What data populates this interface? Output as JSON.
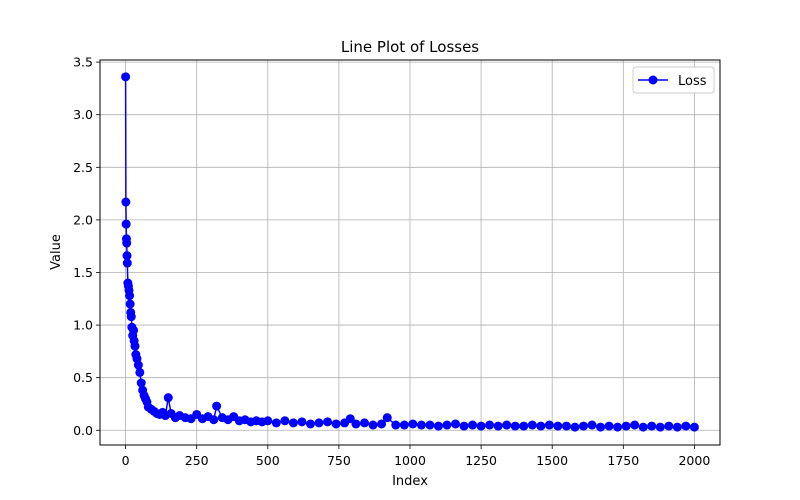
{
  "chart_data": {
    "type": "line",
    "title": "Line Plot of Losses",
    "xlabel": "Index",
    "ylabel": "Value",
    "xlim": [
      -90,
      2090
    ],
    "ylim": [
      -0.14,
      3.52
    ],
    "xticks": [
      0,
      250,
      500,
      750,
      1000,
      1250,
      1500,
      1750,
      2000
    ],
    "xtick_labels": [
      "0",
      "250",
      "500",
      "750",
      "1000",
      "1250",
      "1500",
      "1750",
      "2000"
    ],
    "yticks": [
      0.0,
      0.5,
      1.0,
      1.5,
      2.0,
      2.5,
      3.0,
      3.5
    ],
    "ytick_labels": [
      "0.0",
      "0.5",
      "1.0",
      "1.5",
      "2.0",
      "2.5",
      "3.0",
      "3.5"
    ],
    "grid": true,
    "legend_position": "top-right",
    "series": [
      {
        "name": "Loss",
        "color": "#0000ff",
        "marker": "circle",
        "x": [
          0,
          1,
          2,
          3,
          4,
          5,
          6,
          8,
          10,
          12,
          14,
          16,
          18,
          20,
          22,
          25,
          28,
          30,
          33,
          36,
          40,
          45,
          50,
          55,
          60,
          65,
          70,
          75,
          80,
          90,
          100,
          110,
          120,
          130,
          140,
          150,
          160,
          175,
          190,
          210,
          230,
          250,
          270,
          290,
          310,
          320,
          340,
          360,
          380,
          400,
          420,
          440,
          460,
          480,
          500,
          530,
          560,
          590,
          620,
          650,
          680,
          710,
          740,
          770,
          790,
          810,
          840,
          870,
          900,
          920,
          950,
          980,
          1010,
          1040,
          1070,
          1100,
          1130,
          1160,
          1190,
          1220,
          1250,
          1280,
          1310,
          1340,
          1370,
          1400,
          1430,
          1460,
          1490,
          1520,
          1550,
          1580,
          1610,
          1640,
          1670,
          1700,
          1730,
          1760,
          1790,
          1820,
          1850,
          1880,
          1910,
          1940,
          1970,
          2000
        ],
        "values": [
          3.36,
          2.17,
          1.96,
          1.82,
          1.78,
          1.66,
          1.59,
          1.4,
          1.37,
          1.33,
          1.28,
          1.2,
          1.12,
          1.08,
          0.98,
          0.9,
          0.95,
          0.85,
          0.8,
          0.72,
          0.68,
          0.62,
          0.55,
          0.45,
          0.38,
          0.33,
          0.3,
          0.27,
          0.22,
          0.2,
          0.18,
          0.16,
          0.15,
          0.17,
          0.14,
          0.31,
          0.16,
          0.12,
          0.14,
          0.12,
          0.11,
          0.15,
          0.11,
          0.13,
          0.1,
          0.23,
          0.12,
          0.1,
          0.13,
          0.09,
          0.1,
          0.08,
          0.09,
          0.08,
          0.09,
          0.07,
          0.09,
          0.07,
          0.08,
          0.06,
          0.07,
          0.08,
          0.06,
          0.07,
          0.11,
          0.06,
          0.07,
          0.05,
          0.06,
          0.12,
          0.05,
          0.05,
          0.06,
          0.05,
          0.05,
          0.04,
          0.05,
          0.06,
          0.04,
          0.05,
          0.04,
          0.05,
          0.04,
          0.05,
          0.04,
          0.04,
          0.05,
          0.04,
          0.05,
          0.04,
          0.04,
          0.03,
          0.04,
          0.05,
          0.03,
          0.04,
          0.03,
          0.04,
          0.05,
          0.03,
          0.04,
          0.03,
          0.04,
          0.03,
          0.04,
          0.03
        ]
      }
    ]
  }
}
